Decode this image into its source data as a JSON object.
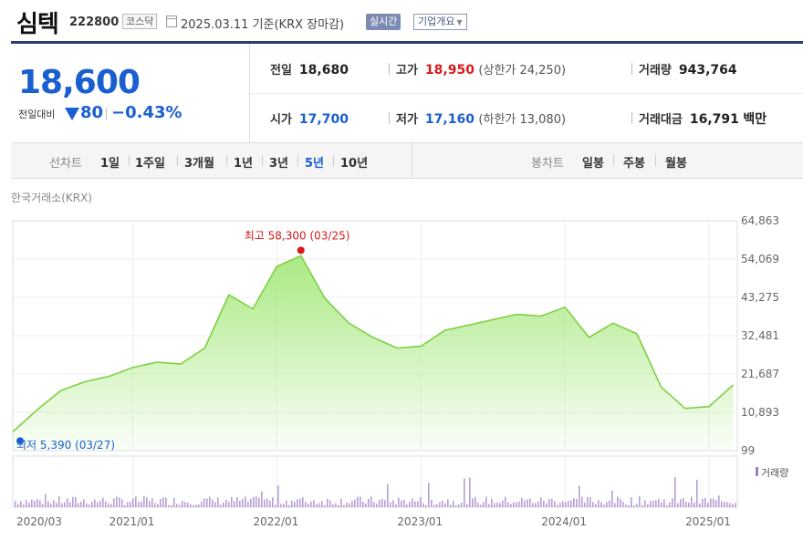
{
  "header": {
    "name": "심텍",
    "code": "222800",
    "market": "코스닥",
    "date_text": "2025.03.11  기준(KRX 장마감)",
    "realtime_label": "실시간",
    "company_label": "기업개요"
  },
  "quote": {
    "price": "18,600",
    "change_label": "전일대비",
    "change": "80",
    "change_pct": "−0.43%"
  },
  "stats": {
    "prev_label": "전일",
    "prev": "18,680",
    "high_label": "고가",
    "high": "18,950",
    "upper_limit": "(상한가 24,250)",
    "volume_label": "거래량",
    "volume": "943,764",
    "open_label": "시가",
    "open": "17,700",
    "low_label": "저가",
    "low": "17,160",
    "lower_limit": "(하한가 13,080)",
    "value_label": "거래대금",
    "value": "16,791",
    "value_unit": "백만"
  },
  "tabs": {
    "line_label": "선차트",
    "line": [
      "1일",
      "1주일",
      "3개월",
      "1년",
      "3년",
      "5년",
      "10년"
    ],
    "active": "5년",
    "candle_label": "봉차트",
    "candle": [
      "일봉",
      "주봉",
      "월봉"
    ]
  },
  "exchange": "한국거래소(KRX)",
  "colors": {
    "up": "#d91a1a",
    "down": "#1a5fd0",
    "line": "#7cd142",
    "fill_top": "#a6e87c",
    "volume": "#9b7fc8"
  },
  "chart_data": {
    "type": "area",
    "y_ticks": [
      "64,863",
      "54,069",
      "43,275",
      "32,481",
      "21,687",
      "10,893",
      "99"
    ],
    "ylim": [
      99,
      64863
    ],
    "x_ticks": [
      "2020/03",
      "2021/01",
      "2022/01",
      "2023/01",
      "2024/01",
      "2025/01"
    ],
    "high_annotation": "최고 58,300 (03/25)",
    "low_annotation": "최저 5,390 (03/27)",
    "volume_label": "거래량",
    "series": [
      {
        "x": [
          "2020/03",
          "2020/05",
          "2020/07",
          "2020/09",
          "2020/11",
          "2021/01",
          "2021/03",
          "2021/05",
          "2021/07",
          "2021/09",
          "2021/11",
          "2022/01",
          "2022/03",
          "2022/05",
          "2022/07",
          "2022/09",
          "2022/11",
          "2023/01",
          "2023/03",
          "2023/05",
          "2023/07",
          "2023/09",
          "2023/11",
          "2024/01",
          "2024/03",
          "2024/05",
          "2024/07",
          "2024/09",
          "2024/11",
          "2025/01",
          "2025/03"
        ],
        "values": [
          5390,
          11500,
          17000,
          19500,
          21000,
          23500,
          25000,
          24500,
          29000,
          44000,
          40000,
          52000,
          55000,
          43000,
          36000,
          32000,
          29000,
          29500,
          34000,
          35500,
          37000,
          38500,
          38000,
          40500,
          32000,
          36000,
          33000,
          18000,
          12000,
          12500,
          18600
        ]
      }
    ]
  }
}
